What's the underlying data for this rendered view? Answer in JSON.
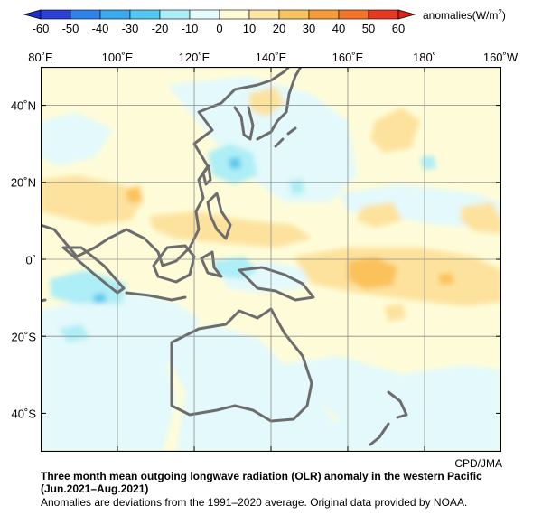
{
  "colorbar": {
    "ticks": [
      "-60",
      "-50",
      "-40",
      "-30",
      "-20",
      "-10",
      "0",
      "10",
      "20",
      "30",
      "40",
      "50",
      "60"
    ],
    "colors": [
      "#2c3ed8",
      "#2f82ec",
      "#3aa9ef",
      "#52c8f4",
      "#aaeef8",
      "#e6fbfd",
      "#fffbd3",
      "#fde6a2",
      "#fbc35e",
      "#f69b35",
      "#f47427",
      "#e8391f"
    ],
    "unit_prefix": "anomalies(W/m",
    "unit_sup": "2",
    "unit_suffix": ")"
  },
  "map": {
    "lon_labels": [
      "80˚E",
      "100˚E",
      "120˚E",
      "140˚E",
      "160˚E",
      "180˚",
      "160˚W"
    ],
    "lat_labels": [
      "40˚N",
      "20˚N",
      "0˚",
      "20˚S",
      "40˚S"
    ],
    "background_color": "#fefcd8",
    "coast_color": "#6d6d6d",
    "grid_color": "#8c8c8c"
  },
  "credit": "CPD/JMA",
  "caption": {
    "line1": "Three month mean outgoing longwave radiation (OLR) anomaly in the western Pacific",
    "line2": "(Jun.2021–Aug.2021)",
    "line3": "Anomalies are deviations from the 1991–2020 average. Original data provided by NOAA."
  }
}
